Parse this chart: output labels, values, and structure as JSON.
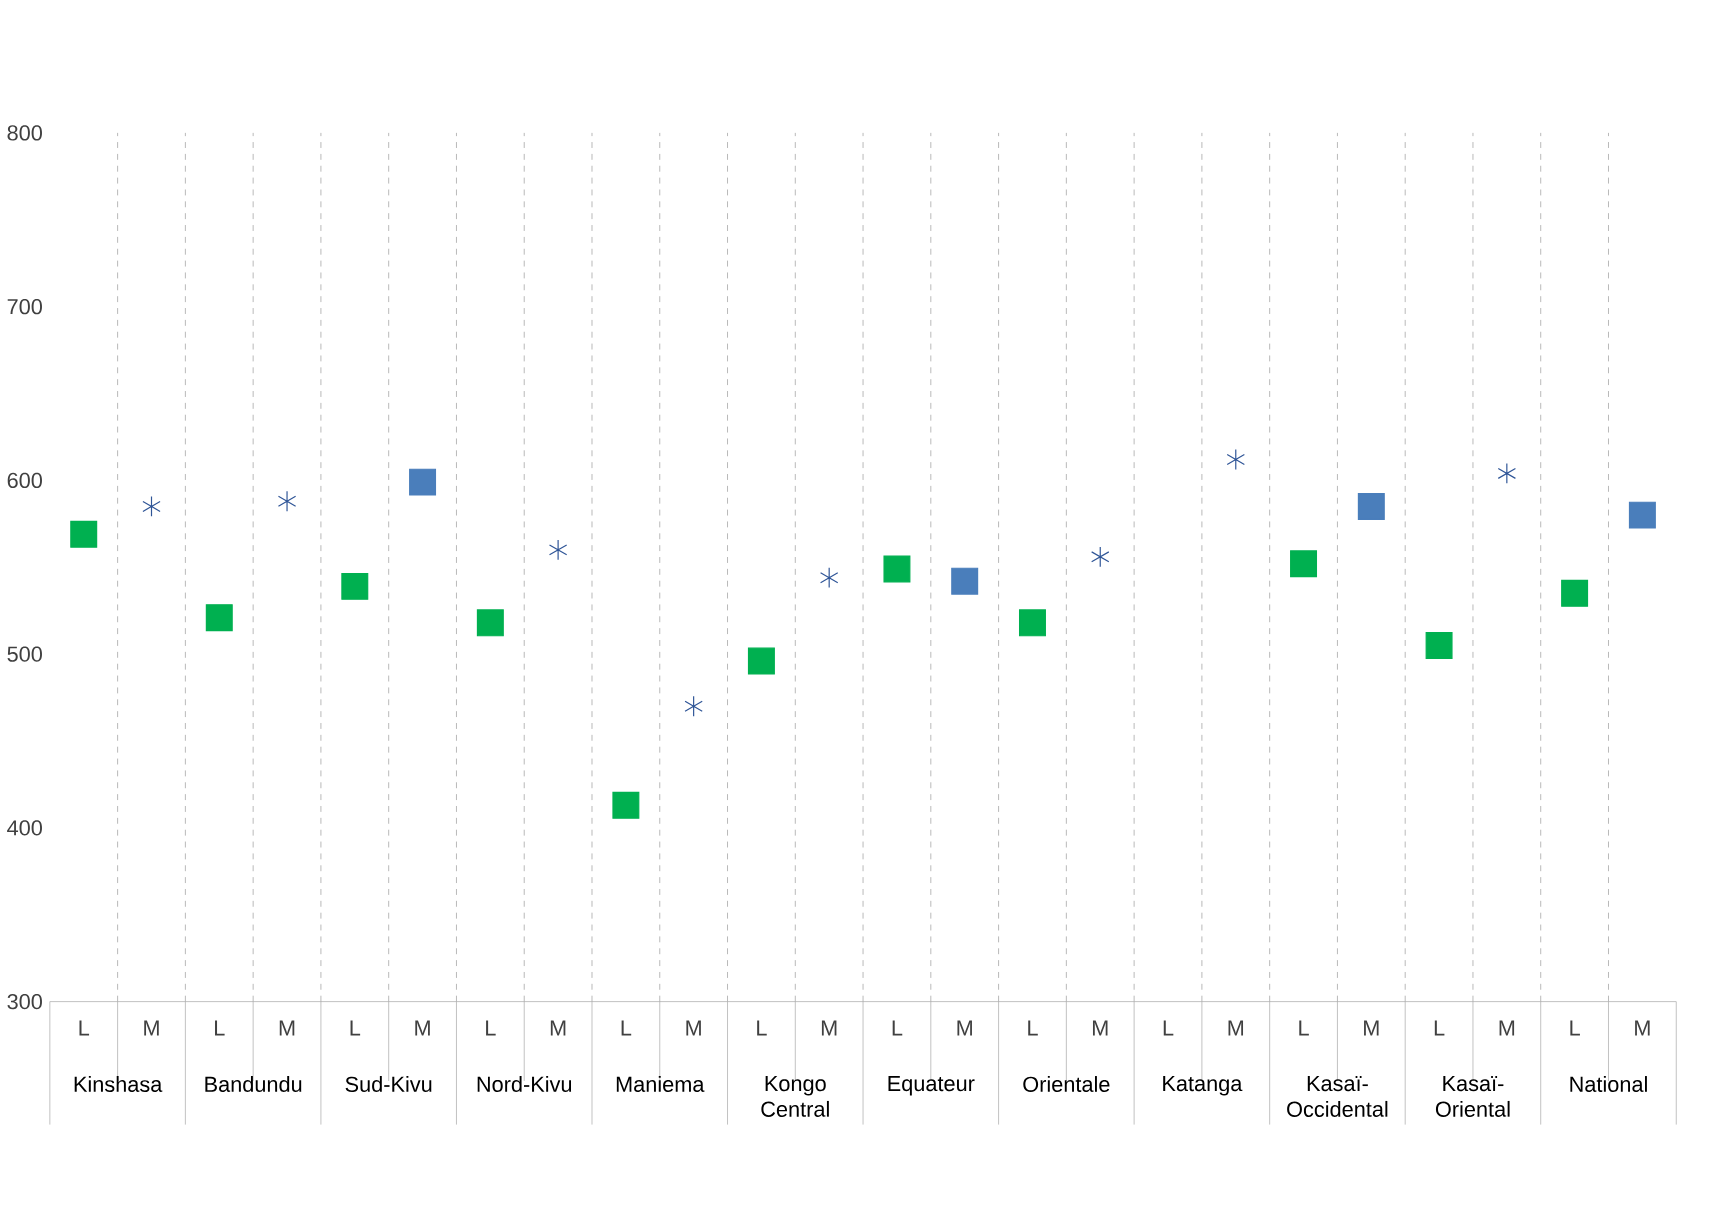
{
  "chart_data": {
    "type": "scatter",
    "categories": [
      "L",
      "M",
      "L",
      "M",
      "L",
      "M",
      "L",
      "M",
      "L",
      "M",
      "L",
      "M",
      "L",
      "M",
      "L",
      "M",
      "L",
      "M",
      "L",
      "M",
      "L",
      "M",
      "L",
      "M"
    ],
    "series": [
      {
        "marker": "square",
        "color": "#00b050",
        "values": [
          569,
          null,
          521,
          null,
          539,
          null,
          518,
          null,
          413,
          null,
          496,
          null,
          549,
          null,
          518,
          null,
          null,
          null,
          552,
          null,
          505,
          null,
          535,
          null
        ]
      },
      {
        "marker": "square",
        "color": "#4a7ebb",
        "values": [
          null,
          null,
          null,
          null,
          null,
          599,
          null,
          null,
          null,
          null,
          null,
          null,
          null,
          542,
          null,
          null,
          null,
          null,
          null,
          585,
          null,
          null,
          null,
          580
        ]
      },
      {
        "marker": "cross",
        "color": "#2f5597",
        "values": [
          null,
          585,
          null,
          588,
          null,
          null,
          null,
          560,
          null,
          470,
          null,
          544,
          null,
          null,
          null,
          556,
          null,
          612,
          null,
          null,
          null,
          604,
          null,
          null
        ]
      }
    ],
    "ylim": [
      300,
      800
    ],
    "yticks": [
      300,
      400,
      500,
      600,
      700,
      800
    ],
    "grid": "x",
    "annotations": [
      "Kinshasa",
      "Bandundu",
      "Sud-Kivu",
      "Nord-Kivu",
      "Maniema",
      "Kongo Central",
      "Equateur",
      "Orientale",
      "Katanga",
      "Kasaï-Occidental",
      "Kasaï-Oriental",
      "National"
    ]
  }
}
